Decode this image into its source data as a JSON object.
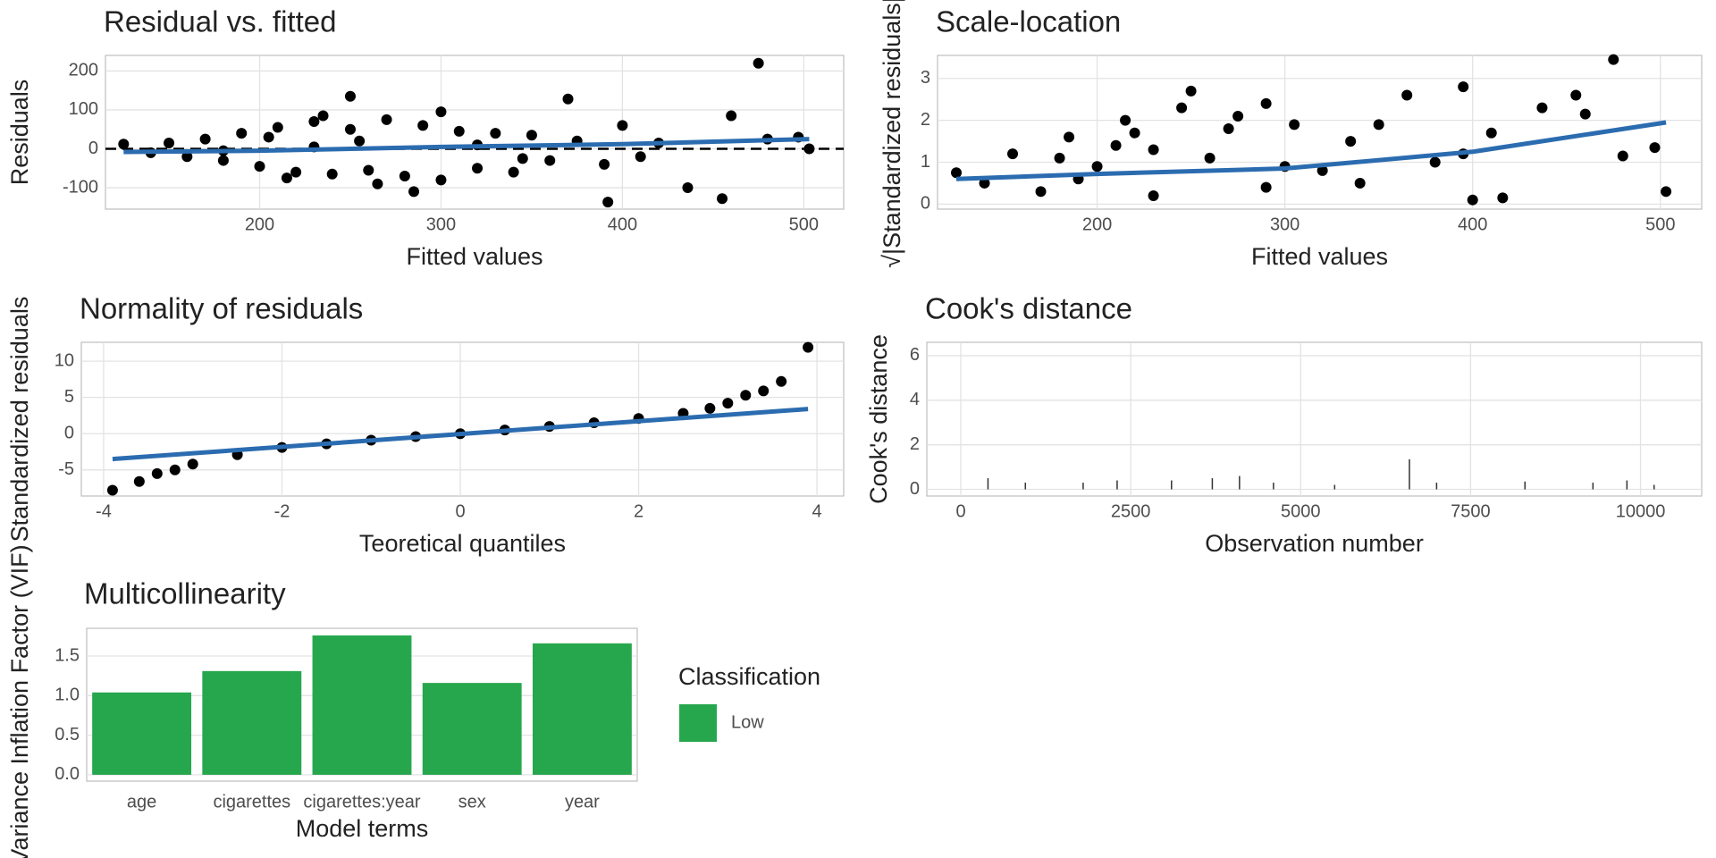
{
  "chart_data": [
    {
      "type": "scatter",
      "title": "Residual vs. fitted",
      "x_label": "Fitted values",
      "y_label": "Residuals",
      "xlim": [
        115,
        522
      ],
      "ylim": [
        -155,
        240
      ],
      "xticks": [
        200,
        300,
        400,
        500
      ],
      "yticks": [
        -100,
        0,
        100,
        200
      ],
      "grid": true,
      "hline": 0,
      "points": {
        "color": "#000000",
        "x": [
          125,
          140,
          150,
          160,
          170,
          180,
          190,
          200,
          210,
          220,
          230,
          240,
          250,
          260,
          270,
          280,
          290,
          300,
          310,
          320,
          330,
          340,
          350,
          360,
          375,
          390,
          400,
          410,
          420,
          436,
          455,
          460,
          475,
          480,
          497,
          503,
          250,
          285,
          370,
          392,
          215,
          235,
          265,
          300,
          205,
          255,
          180,
          320,
          345,
          230
        ],
        "y": [
          12,
          -10,
          15,
          -20,
          25,
          -30,
          40,
          -45,
          55,
          -60,
          70,
          -65,
          50,
          -55,
          75,
          -70,
          60,
          -80,
          45,
          -50,
          40,
          -60,
          35,
          -30,
          20,
          -40,
          60,
          -20,
          15,
          -100,
          -128,
          85,
          220,
          25,
          30,
          0,
          135,
          -110,
          128,
          -137,
          -75,
          85,
          -90,
          95,
          30,
          20,
          -5,
          10,
          -25,
          5
        ]
      },
      "smooth": {
        "color": "#2b6cb0",
        "x": [
          125,
          200,
          300,
          400,
          503
        ],
        "y": [
          -8,
          -5,
          5,
          12,
          25
        ]
      }
    },
    {
      "type": "scatter",
      "title": "Scale-location",
      "x_label": "Fitted values",
      "y_label": "√|Standardized residuals|",
      "xlim": [
        115,
        522
      ],
      "ylim": [
        -0.12,
        3.55
      ],
      "xticks": [
        200,
        300,
        400,
        500
      ],
      "yticks": [
        0,
        1,
        2,
        3
      ],
      "grid": true,
      "points": {
        "color": "#000000",
        "x": [
          125,
          140,
          155,
          170,
          185,
          200,
          215,
          230,
          245,
          260,
          275,
          290,
          305,
          320,
          335,
          350,
          365,
          380,
          395,
          400,
          410,
          416,
          437,
          455,
          460,
          475,
          480,
          497,
          503,
          250,
          230,
          190,
          270,
          300,
          210,
          180,
          340,
          290,
          395,
          220
        ],
        "y": [
          0.75,
          0.5,
          1.2,
          0.3,
          1.6,
          0.9,
          2.0,
          0.2,
          2.3,
          1.1,
          2.1,
          0.4,
          1.9,
          0.8,
          1.5,
          1.9,
          2.6,
          1.0,
          2.8,
          0.1,
          1.7,
          0.15,
          2.3,
          2.6,
          2.15,
          3.45,
          1.15,
          1.35,
          0.3,
          2.7,
          1.3,
          0.6,
          1.8,
          0.9,
          1.4,
          1.1,
          0.5,
          2.4,
          1.2,
          1.7
        ]
      },
      "smooth": {
        "color": "#2b6cb0",
        "x": [
          125,
          200,
          300,
          400,
          503
        ],
        "y": [
          0.6,
          0.72,
          0.85,
          1.25,
          1.95
        ]
      }
    },
    {
      "type": "scatter",
      "title": "Normality of residuals",
      "x_label": "Teoretical quantiles",
      "y_label": "Standardized residuals",
      "xlim": [
        -4.25,
        4.3
      ],
      "ylim": [
        -8.6,
        12.6
      ],
      "xticks": [
        -4,
        -2,
        0,
        2,
        4
      ],
      "yticks": [
        -5,
        0,
        5,
        10
      ],
      "grid": true,
      "points": {
        "color": "#000000",
        "x": [
          -3.9,
          -3.6,
          -3.4,
          -3.2,
          -3,
          -2.5,
          -2,
          -1.5,
          -1,
          -0.5,
          0,
          0.5,
          1,
          1.5,
          2,
          2.5,
          2.8,
          3,
          3.2,
          3.4,
          3.6,
          3.9
        ],
        "y": [
          -7.8,
          -6.6,
          -5.5,
          -5,
          -4.2,
          -2.9,
          -1.9,
          -1.4,
          -0.9,
          -0.4,
          0,
          0.5,
          1.0,
          1.5,
          2.1,
          2.8,
          3.5,
          4.2,
          5.3,
          5.9,
          7.2,
          11.9
        ]
      },
      "smooth": {
        "color": "#2b6cb0",
        "x": [
          -3.9,
          3.9
        ],
        "y": [
          -3.5,
          3.4
        ]
      }
    },
    {
      "type": "spike",
      "title": "Cook's distance",
      "x_label": "Observation number",
      "y_label": "Cook's distance",
      "xlim": [
        -500,
        10900
      ],
      "ylim": [
        -0.3,
        6.6
      ],
      "xticks": [
        0,
        2500,
        5000,
        7500,
        10000
      ],
      "yticks": [
        0,
        2,
        4,
        6
      ],
      "grid": true,
      "color": "#333333",
      "x": [
        400,
        950,
        1800,
        2300,
        3100,
        3700,
        4100,
        4600,
        5500,
        6600,
        7000,
        8300,
        9300,
        9800,
        10200
      ],
      "values": [
        0.5,
        0.3,
        0.3,
        0.4,
        0.4,
        0.5,
        0.6,
        0.3,
        0.2,
        1.35,
        0.3,
        0.35,
        0.3,
        0.4,
        0.2
      ]
    },
    {
      "type": "bar",
      "title": "Multicollinearity",
      "x_label": "Model terms",
      "y_label": "Variance Inflation Factor (VIF)",
      "categories": [
        "age",
        "cigarettes",
        "cigarettes:year",
        "sex",
        "year"
      ],
      "ylim": [
        -0.08,
        1.85
      ],
      "yticks": [
        {
          "value": 0,
          "label": "0.0"
        },
        0.5,
        {
          "value": 1,
          "label": "1.0"
        },
        1.5
      ],
      "grid": true,
      "legend_title": "Classification",
      "series": [
        {
          "name": "Low",
          "color": "#27a74d",
          "values": [
            1.04,
            1.31,
            1.76,
            1.16,
            1.66
          ]
        }
      ]
    }
  ]
}
